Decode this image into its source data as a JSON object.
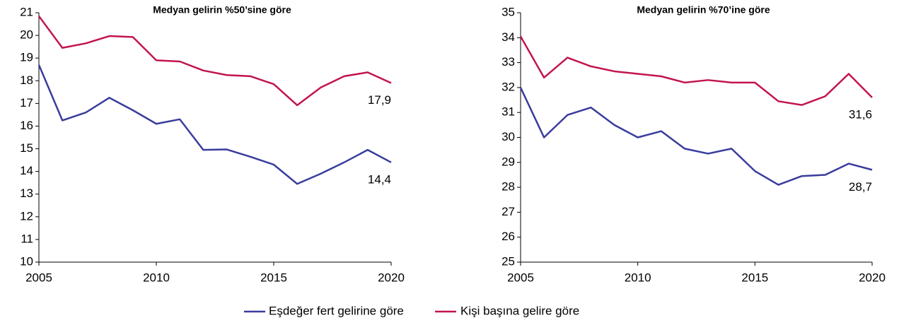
{
  "chart_data": [
    {
      "type": "line",
      "title": "Medyan gelirin %50’sine göre",
      "x": [
        2005,
        2006,
        2007,
        2008,
        2009,
        2010,
        2011,
        2012,
        2013,
        2014,
        2015,
        2016,
        2017,
        2018,
        2019,
        2020
      ],
      "xlim": [
        2005,
        2020
      ],
      "xticks": [
        2005,
        2010,
        2015,
        2020
      ],
      "ylim": [
        10,
        21
      ],
      "yticks": [
        10,
        11,
        12,
        13,
        14,
        15,
        16,
        17,
        18,
        19,
        20,
        21
      ],
      "series": [
        {
          "name": "Eşdeğer fert gelirine göre",
          "color": "#3a3c9c",
          "values": [
            18.7,
            16.25,
            16.6,
            17.25,
            16.7,
            16.1,
            16.3,
            14.95,
            14.97,
            14.65,
            14.3,
            13.45,
            13.9,
            14.4,
            14.95,
            14.4
          ],
          "value_labels": [
            null,
            null,
            null,
            null,
            null,
            null,
            null,
            null,
            null,
            null,
            null,
            null,
            null,
            null,
            null,
            "14,4"
          ]
        },
        {
          "name": "Kişi başına gelire göre",
          "color": "#c2154e",
          "values": [
            20.85,
            19.45,
            19.65,
            19.97,
            19.93,
            18.9,
            18.85,
            18.45,
            18.25,
            18.2,
            17.85,
            16.92,
            17.7,
            18.2,
            18.37,
            17.9
          ],
          "value_labels": [
            null,
            null,
            null,
            null,
            null,
            null,
            null,
            null,
            null,
            null,
            null,
            null,
            null,
            null,
            null,
            "17,9"
          ]
        }
      ]
    },
    {
      "type": "line",
      "title": "Medyan gelirin %70’ine göre",
      "x": [
        2005,
        2006,
        2007,
        2008,
        2009,
        2010,
        2011,
        2012,
        2013,
        2014,
        2015,
        2016,
        2017,
        2018,
        2019,
        2020
      ],
      "xlim": [
        2005,
        2020
      ],
      "xticks": [
        2005,
        2010,
        2015,
        2020
      ],
      "ylim": [
        25,
        35
      ],
      "yticks": [
        25,
        26,
        27,
        28,
        29,
        30,
        31,
        32,
        33,
        34,
        35
      ],
      "series": [
        {
          "color": "#3a3c9c",
          "values": [
            32.0,
            30.0,
            30.9,
            31.2,
            30.5,
            30.0,
            30.25,
            29.55,
            29.35,
            29.55,
            28.65,
            28.1,
            28.45,
            28.5,
            28.95,
            28.7
          ],
          "value_labels": [
            null,
            null,
            null,
            null,
            null,
            null,
            null,
            null,
            null,
            null,
            null,
            null,
            null,
            null,
            null,
            "28,7"
          ]
        },
        {
          "color": "#c2154e",
          "values": [
            34.05,
            32.4,
            33.2,
            32.85,
            32.65,
            32.55,
            32.45,
            32.2,
            32.3,
            32.2,
            32.2,
            31.45,
            31.3,
            31.65,
            32.55,
            31.6
          ],
          "value_labels": [
            null,
            null,
            null,
            null,
            null,
            null,
            null,
            null,
            null,
            null,
            null,
            null,
            null,
            null,
            null,
            "31,6"
          ]
        }
      ]
    }
  ]
}
